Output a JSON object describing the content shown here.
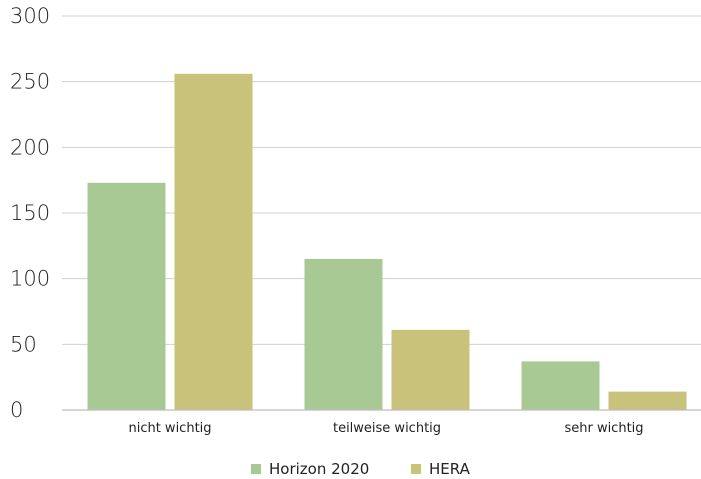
{
  "chart_data": {
    "type": "bar",
    "categories": [
      "nicht wichtig",
      "teilweise wichtig",
      "sehr wichtig"
    ],
    "series": [
      {
        "name": "Horizon 2020",
        "values": [
          173,
          115,
          37
        ],
        "color": "#a8c993"
      },
      {
        "name": "HERA",
        "values": [
          256,
          61,
          14
        ],
        "color": "#c9c27a"
      }
    ],
    "ylim": [
      0,
      300
    ],
    "yticks": [
      0,
      50,
      100,
      150,
      200,
      250,
      300
    ],
    "grid": true,
    "legend": "bottom-center",
    "title": "",
    "xlabel": "",
    "ylabel": ""
  }
}
